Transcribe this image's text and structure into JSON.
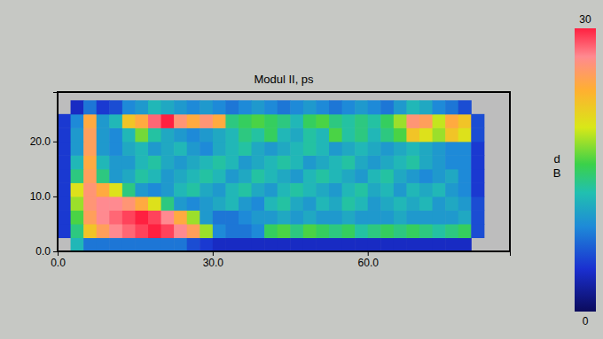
{
  "chart_data": {
    "type": "heatmap",
    "title": "Modul II, ps",
    "x": [
      1.25,
      3.75,
      6.25,
      8.75,
      11.25,
      13.75,
      16.25,
      18.75,
      21.25,
      23.75,
      26.25,
      28.75,
      31.25,
      33.75,
      36.25,
      38.75,
      41.25,
      43.75,
      46.25,
      48.75,
      51.25,
      53.75,
      56.25,
      58.75,
      61.25,
      63.75,
      66.25,
      68.75,
      71.25,
      73.75,
      76.25,
      78.75,
      81.25,
      83.75
    ],
    "y": [
      1.25,
      3.75,
      6.25,
      8.75,
      11.25,
      13.75,
      16.25,
      18.75,
      21.25,
      23.75,
      26.25
    ],
    "values": [
      [
        null,
        12,
        8,
        8,
        8,
        8,
        8,
        8,
        8,
        8,
        6,
        5,
        4,
        4,
        4,
        4,
        4,
        4,
        4,
        4,
        4,
        4,
        4,
        4,
        4,
        4,
        4,
        4,
        4,
        4,
        4,
        4,
        null,
        null
      ],
      [
        5,
        14,
        22,
        25,
        27,
        28,
        29,
        30,
        29,
        27,
        25,
        18,
        9,
        8,
        8,
        9,
        15,
        16,
        14,
        16,
        15,
        14,
        15,
        13,
        14,
        15,
        14,
        15,
        14,
        13,
        14,
        15,
        6,
        null
      ],
      [
        5,
        16,
        25,
        27,
        28,
        29,
        30,
        29,
        27,
        24,
        18,
        10,
        8,
        8,
        9,
        10,
        10,
        11,
        10,
        11,
        10,
        10,
        11,
        10,
        10,
        10,
        11,
        10,
        10,
        10,
        10,
        11,
        6,
        null
      ],
      [
        5,
        18,
        26,
        27,
        27,
        26,
        24,
        20,
        14,
        10,
        9,
        10,
        11,
        12,
        10,
        9,
        12,
        13,
        11,
        10,
        12,
        11,
        13,
        12,
        10,
        11,
        12,
        11,
        12,
        10,
        11,
        10,
        6,
        null
      ],
      [
        5,
        20,
        26,
        24,
        20,
        14,
        10,
        9,
        10,
        12,
        13,
        11,
        10,
        12,
        13,
        11,
        10,
        12,
        13,
        12,
        11,
        10,
        12,
        13,
        11,
        12,
        10,
        12,
        11,
        12,
        10,
        9,
        5,
        null
      ],
      [
        5,
        14,
        25,
        14,
        10,
        11,
        13,
        12,
        10,
        11,
        12,
        13,
        12,
        10,
        11,
        13,
        12,
        11,
        10,
        12,
        13,
        12,
        11,
        10,
        12,
        13,
        11,
        10,
        9,
        10,
        11,
        9,
        5,
        null
      ],
      [
        5,
        12,
        24,
        12,
        10,
        10,
        12,
        13,
        11,
        10,
        11,
        12,
        13,
        12,
        10,
        11,
        12,
        13,
        12,
        10,
        11,
        12,
        13,
        11,
        10,
        11,
        12,
        13,
        11,
        10,
        9,
        9,
        5,
        null
      ],
      [
        5,
        10,
        25,
        10,
        9,
        11,
        12,
        10,
        11,
        12,
        10,
        9,
        11,
        12,
        13,
        11,
        10,
        11,
        12,
        13,
        12,
        10,
        11,
        12,
        11,
        10,
        11,
        12,
        11,
        10,
        9,
        9,
        5,
        null
      ],
      [
        5,
        10,
        25,
        10,
        9,
        12,
        17,
        13,
        11,
        10,
        9,
        10,
        11,
        12,
        14,
        13,
        15,
        12,
        11,
        13,
        12,
        16,
        13,
        14,
        12,
        14,
        16,
        22,
        20,
        18,
        22,
        20,
        6,
        null
      ],
      [
        5,
        9,
        24,
        10,
        12,
        22,
        24,
        28,
        30,
        26,
        24,
        26,
        24,
        14,
        15,
        16,
        15,
        14,
        12,
        15,
        16,
        14,
        13,
        14,
        13,
        15,
        18,
        26,
        25,
        19,
        24,
        22,
        6,
        null
      ],
      [
        null,
        4,
        8,
        5,
        6,
        9,
        10,
        12,
        11,
        10,
        9,
        10,
        9,
        8,
        9,
        10,
        9,
        8,
        9,
        10,
        9,
        8,
        9,
        10,
        9,
        8,
        10,
        12,
        11,
        9,
        8,
        6,
        null,
        null
      ]
    ],
    "xlim": [
      0,
      87.5
    ],
    "ylim": [
      0,
      29
    ],
    "xticks": [
      {
        "value": 0,
        "label": "0.0"
      },
      {
        "value": 30,
        "label": "30.0"
      },
      {
        "value": 60,
        "label": "60.0"
      }
    ],
    "yticks": [
      {
        "value": 0,
        "label": "0.0"
      },
      {
        "value": 10,
        "label": "10.0"
      },
      {
        "value": 20,
        "label": "20.0"
      }
    ],
    "colorbar": {
      "label": "dB",
      "range": [
        0,
        30
      ],
      "ticks": [
        0,
        30
      ]
    }
  }
}
